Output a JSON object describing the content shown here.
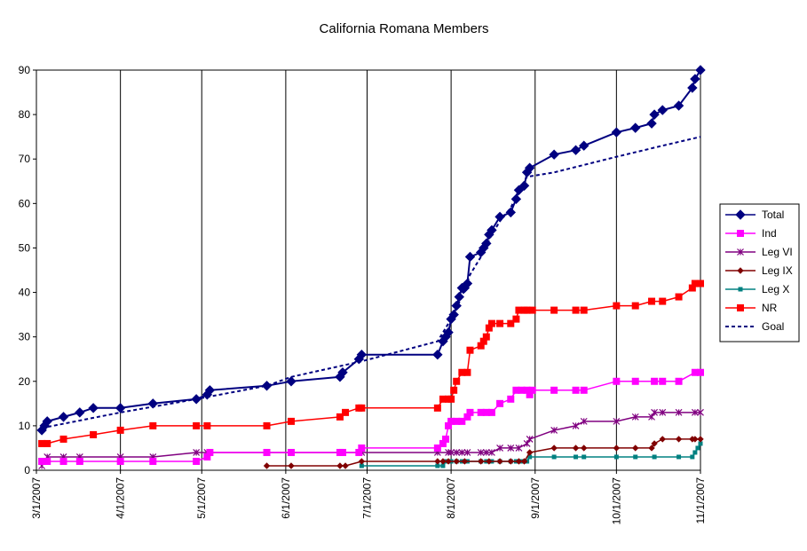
{
  "chart_data": {
    "type": "line",
    "title": "California Romana Members",
    "xlabel": "",
    "ylabel": "",
    "ylim": [
      0,
      90
    ],
    "yticks": [
      0,
      10,
      20,
      30,
      40,
      50,
      60,
      70,
      80,
      90
    ],
    "xlim": [
      "2007-03-01",
      "2007-11-01"
    ],
    "xticks": [
      "3/1/2007",
      "4/1/2007",
      "5/1/2007",
      "6/1/2007",
      "7/1/2007",
      "8/1/2007",
      "9/1/2007",
      "10/1/2007",
      "11/1/2007"
    ],
    "xtick_dates": [
      "2007-03-01",
      "2007-04-01",
      "2007-05-01",
      "2007-06-01",
      "2007-07-01",
      "2007-08-01",
      "2007-09-01",
      "2007-10-01",
      "2007-11-01"
    ],
    "grid": "vertical",
    "legend_position": "right",
    "series": [
      {
        "name": "Total",
        "color": "#000080",
        "marker": "diamond",
        "line": "solid",
        "points": [
          [
            "2007-03-03",
            9
          ],
          [
            "2007-03-04",
            10
          ],
          [
            "2007-03-05",
            11
          ],
          [
            "2007-03-11",
            12
          ],
          [
            "2007-03-17",
            13
          ],
          [
            "2007-03-22",
            14
          ],
          [
            "2007-04-01",
            14
          ],
          [
            "2007-04-13",
            15
          ],
          [
            "2007-04-29",
            16
          ],
          [
            "2007-05-03",
            17
          ],
          [
            "2007-05-04",
            18
          ],
          [
            "2007-05-25",
            19
          ],
          [
            "2007-06-03",
            20
          ],
          [
            "2007-06-21",
            21
          ],
          [
            "2007-06-22",
            22
          ],
          [
            "2007-06-28",
            25
          ],
          [
            "2007-06-29",
            26
          ],
          [
            "2007-07-27",
            26
          ],
          [
            "2007-07-29",
            29
          ],
          [
            "2007-07-30",
            30
          ],
          [
            "2007-07-31",
            31
          ],
          [
            "2007-08-01",
            34
          ],
          [
            "2007-08-02",
            35
          ],
          [
            "2007-08-03",
            37
          ],
          [
            "2007-08-04",
            39
          ],
          [
            "2007-08-05",
            41
          ],
          [
            "2007-08-06",
            41
          ],
          [
            "2007-08-07",
            42
          ],
          [
            "2007-08-08",
            48
          ],
          [
            "2007-08-12",
            49
          ],
          [
            "2007-08-13",
            50
          ],
          [
            "2007-08-14",
            51
          ],
          [
            "2007-08-15",
            53
          ],
          [
            "2007-08-16",
            54
          ],
          [
            "2007-08-19",
            57
          ],
          [
            "2007-08-23",
            58
          ],
          [
            "2007-08-25",
            61
          ],
          [
            "2007-08-26",
            63
          ],
          [
            "2007-08-28",
            64
          ],
          [
            "2007-08-29",
            67
          ],
          [
            "2007-08-30",
            68
          ],
          [
            "2007-09-08",
            71
          ],
          [
            "2007-09-16",
            72
          ],
          [
            "2007-09-19",
            73
          ],
          [
            "2007-10-01",
            76
          ],
          [
            "2007-10-08",
            77
          ],
          [
            "2007-10-14",
            78
          ],
          [
            "2007-10-15",
            80
          ],
          [
            "2007-10-18",
            81
          ],
          [
            "2007-10-24",
            82
          ],
          [
            "2007-10-29",
            86
          ],
          [
            "2007-10-30",
            88
          ],
          [
            "2007-11-01",
            90
          ]
        ]
      },
      {
        "name": "Ind",
        "color": "#FF00FF",
        "marker": "square",
        "line": "solid",
        "points": [
          [
            "2007-03-03",
            2
          ],
          [
            "2007-03-05",
            2
          ],
          [
            "2007-03-11",
            2
          ],
          [
            "2007-03-17",
            2
          ],
          [
            "2007-04-01",
            2
          ],
          [
            "2007-04-13",
            2
          ],
          [
            "2007-04-29",
            2
          ],
          [
            "2007-05-03",
            3
          ],
          [
            "2007-05-04",
            4
          ],
          [
            "2007-05-25",
            4
          ],
          [
            "2007-06-03",
            4
          ],
          [
            "2007-06-21",
            4
          ],
          [
            "2007-06-22",
            4
          ],
          [
            "2007-06-28",
            4
          ],
          [
            "2007-06-29",
            5
          ],
          [
            "2007-07-27",
            5
          ],
          [
            "2007-07-29",
            6
          ],
          [
            "2007-07-30",
            7
          ],
          [
            "2007-07-31",
            10
          ],
          [
            "2007-08-01",
            11
          ],
          [
            "2007-08-03",
            11
          ],
          [
            "2007-08-05",
            11
          ],
          [
            "2007-08-07",
            12
          ],
          [
            "2007-08-08",
            13
          ],
          [
            "2007-08-12",
            13
          ],
          [
            "2007-08-14",
            13
          ],
          [
            "2007-08-16",
            13
          ],
          [
            "2007-08-19",
            15
          ],
          [
            "2007-08-23",
            16
          ],
          [
            "2007-08-25",
            18
          ],
          [
            "2007-08-27",
            18
          ],
          [
            "2007-08-29",
            18
          ],
          [
            "2007-08-30",
            17
          ],
          [
            "2007-08-31",
            18
          ],
          [
            "2007-09-08",
            18
          ],
          [
            "2007-09-16",
            18
          ],
          [
            "2007-09-19",
            18
          ],
          [
            "2007-10-01",
            20
          ],
          [
            "2007-10-08",
            20
          ],
          [
            "2007-10-15",
            20
          ],
          [
            "2007-10-18",
            20
          ],
          [
            "2007-10-24",
            20
          ],
          [
            "2007-10-30",
            22
          ],
          [
            "2007-11-01",
            22
          ]
        ]
      },
      {
        "name": "Leg VI",
        "color": "#800080",
        "marker": "star",
        "line": "solid",
        "points": [
          [
            "2007-03-03",
            1
          ],
          [
            "2007-03-05",
            3
          ],
          [
            "2007-03-11",
            3
          ],
          [
            "2007-03-17",
            3
          ],
          [
            "2007-04-01",
            3
          ],
          [
            "2007-04-13",
            3
          ],
          [
            "2007-04-29",
            4
          ],
          [
            "2007-05-03",
            4
          ],
          [
            "2007-05-25",
            4
          ],
          [
            "2007-06-03",
            4
          ],
          [
            "2007-06-22",
            4
          ],
          [
            "2007-06-29",
            4
          ],
          [
            "2007-07-27",
            4
          ],
          [
            "2007-07-31",
            4
          ],
          [
            "2007-08-01",
            4
          ],
          [
            "2007-08-03",
            4
          ],
          [
            "2007-08-05",
            4
          ],
          [
            "2007-08-07",
            4
          ],
          [
            "2007-08-12",
            4
          ],
          [
            "2007-08-14",
            4
          ],
          [
            "2007-08-16",
            4
          ],
          [
            "2007-08-19",
            5
          ],
          [
            "2007-08-23",
            5
          ],
          [
            "2007-08-26",
            5
          ],
          [
            "2007-08-29",
            6
          ],
          [
            "2007-08-30",
            7
          ],
          [
            "2007-09-08",
            9
          ],
          [
            "2007-09-16",
            10
          ],
          [
            "2007-09-19",
            11
          ],
          [
            "2007-10-01",
            11
          ],
          [
            "2007-10-08",
            12
          ],
          [
            "2007-10-14",
            12
          ],
          [
            "2007-10-15",
            13
          ],
          [
            "2007-10-18",
            13
          ],
          [
            "2007-10-24",
            13
          ],
          [
            "2007-10-30",
            13
          ],
          [
            "2007-11-01",
            13
          ]
        ]
      },
      {
        "name": "Leg IX",
        "color": "#800000",
        "marker": "diamond-small",
        "line": "solid",
        "points": [
          [
            "2007-05-25",
            1
          ],
          [
            "2007-06-03",
            1
          ],
          [
            "2007-06-21",
            1
          ],
          [
            "2007-06-23",
            1
          ],
          [
            "2007-06-29",
            2
          ],
          [
            "2007-07-27",
            2
          ],
          [
            "2007-07-29",
            2
          ],
          [
            "2007-07-31",
            2
          ],
          [
            "2007-08-03",
            2
          ],
          [
            "2007-08-06",
            2
          ],
          [
            "2007-08-12",
            2
          ],
          [
            "2007-08-15",
            2
          ],
          [
            "2007-08-19",
            2
          ],
          [
            "2007-08-23",
            2
          ],
          [
            "2007-08-26",
            2
          ],
          [
            "2007-08-28",
            2
          ],
          [
            "2007-08-30",
            4
          ],
          [
            "2007-09-08",
            5
          ],
          [
            "2007-09-16",
            5
          ],
          [
            "2007-09-19",
            5
          ],
          [
            "2007-10-01",
            5
          ],
          [
            "2007-10-08",
            5
          ],
          [
            "2007-10-14",
            5
          ],
          [
            "2007-10-15",
            6
          ],
          [
            "2007-10-18",
            7
          ],
          [
            "2007-10-24",
            7
          ],
          [
            "2007-10-29",
            7
          ],
          [
            "2007-10-30",
            7
          ],
          [
            "2007-11-01",
            7
          ]
        ]
      },
      {
        "name": "Leg X",
        "color": "#008080",
        "marker": "square-small",
        "line": "solid",
        "points": [
          [
            "2007-06-29",
            1
          ],
          [
            "2007-07-27",
            1
          ],
          [
            "2007-07-29",
            1
          ],
          [
            "2007-07-30",
            2
          ],
          [
            "2007-08-01",
            2
          ],
          [
            "2007-08-03",
            2
          ],
          [
            "2007-08-05",
            2
          ],
          [
            "2007-08-07",
            2
          ],
          [
            "2007-08-12",
            2
          ],
          [
            "2007-08-14",
            2
          ],
          [
            "2007-08-16",
            2
          ],
          [
            "2007-08-19",
            2
          ],
          [
            "2007-08-23",
            2
          ],
          [
            "2007-08-25",
            2
          ],
          [
            "2007-08-27",
            2
          ],
          [
            "2007-08-29",
            2
          ],
          [
            "2007-08-30",
            3
          ],
          [
            "2007-09-08",
            3
          ],
          [
            "2007-09-16",
            3
          ],
          [
            "2007-09-19",
            3
          ],
          [
            "2007-10-01",
            3
          ],
          [
            "2007-10-08",
            3
          ],
          [
            "2007-10-15",
            3
          ],
          [
            "2007-10-24",
            3
          ],
          [
            "2007-10-29",
            3
          ],
          [
            "2007-10-30",
            4
          ],
          [
            "2007-10-31",
            5
          ],
          [
            "2007-11-01",
            6
          ]
        ]
      },
      {
        "name": "NR",
        "color": "#FF0000",
        "marker": "square",
        "line": "solid",
        "points": [
          [
            "2007-03-03",
            6
          ],
          [
            "2007-03-05",
            6
          ],
          [
            "2007-03-11",
            7
          ],
          [
            "2007-03-22",
            8
          ],
          [
            "2007-04-01",
            9
          ],
          [
            "2007-04-13",
            10
          ],
          [
            "2007-04-29",
            10
          ],
          [
            "2007-05-03",
            10
          ],
          [
            "2007-05-25",
            10
          ],
          [
            "2007-06-03",
            11
          ],
          [
            "2007-06-21",
            12
          ],
          [
            "2007-06-23",
            13
          ],
          [
            "2007-06-28",
            14
          ],
          [
            "2007-06-29",
            14
          ],
          [
            "2007-07-27",
            14
          ],
          [
            "2007-07-29",
            16
          ],
          [
            "2007-07-31",
            16
          ],
          [
            "2007-08-01",
            16
          ],
          [
            "2007-08-02",
            18
          ],
          [
            "2007-08-03",
            20
          ],
          [
            "2007-08-05",
            22
          ],
          [
            "2007-08-07",
            22
          ],
          [
            "2007-08-08",
            27
          ],
          [
            "2007-08-12",
            28
          ],
          [
            "2007-08-13",
            29
          ],
          [
            "2007-08-14",
            30
          ],
          [
            "2007-08-15",
            32
          ],
          [
            "2007-08-16",
            33
          ],
          [
            "2007-08-19",
            33
          ],
          [
            "2007-08-23",
            33
          ],
          [
            "2007-08-25",
            34
          ],
          [
            "2007-08-26",
            36
          ],
          [
            "2007-08-28",
            36
          ],
          [
            "2007-08-29",
            36
          ],
          [
            "2007-08-31",
            36
          ],
          [
            "2007-09-08",
            36
          ],
          [
            "2007-09-16",
            36
          ],
          [
            "2007-09-19",
            36
          ],
          [
            "2007-10-01",
            37
          ],
          [
            "2007-10-08",
            37
          ],
          [
            "2007-10-14",
            38
          ],
          [
            "2007-10-18",
            38
          ],
          [
            "2007-10-24",
            39
          ],
          [
            "2007-10-29",
            41
          ],
          [
            "2007-10-30",
            42
          ],
          [
            "2007-11-01",
            42
          ]
        ]
      },
      {
        "name": "Goal",
        "color": "#000080",
        "marker": "none",
        "line": "dashed",
        "points": [
          [
            "2007-03-03",
            9.5
          ],
          [
            "2007-04-01",
            13
          ],
          [
            "2007-04-29",
            16
          ],
          [
            "2007-05-25",
            19
          ],
          [
            "2007-06-03",
            21
          ],
          [
            "2007-06-29",
            24.5
          ],
          [
            "2007-07-27",
            29
          ],
          [
            "2007-08-01",
            34
          ],
          [
            "2007-08-05",
            39
          ],
          [
            "2007-08-08",
            44
          ],
          [
            "2007-08-12",
            48
          ],
          [
            "2007-08-16",
            53
          ],
          [
            "2007-08-19",
            56
          ],
          [
            "2007-08-23",
            59
          ],
          [
            "2007-08-26",
            63
          ],
          [
            "2007-08-29",
            66
          ],
          [
            "2007-09-08",
            67
          ],
          [
            "2007-10-01",
            70.5
          ],
          [
            "2007-10-18",
            73
          ],
          [
            "2007-11-01",
            75
          ]
        ]
      }
    ]
  }
}
